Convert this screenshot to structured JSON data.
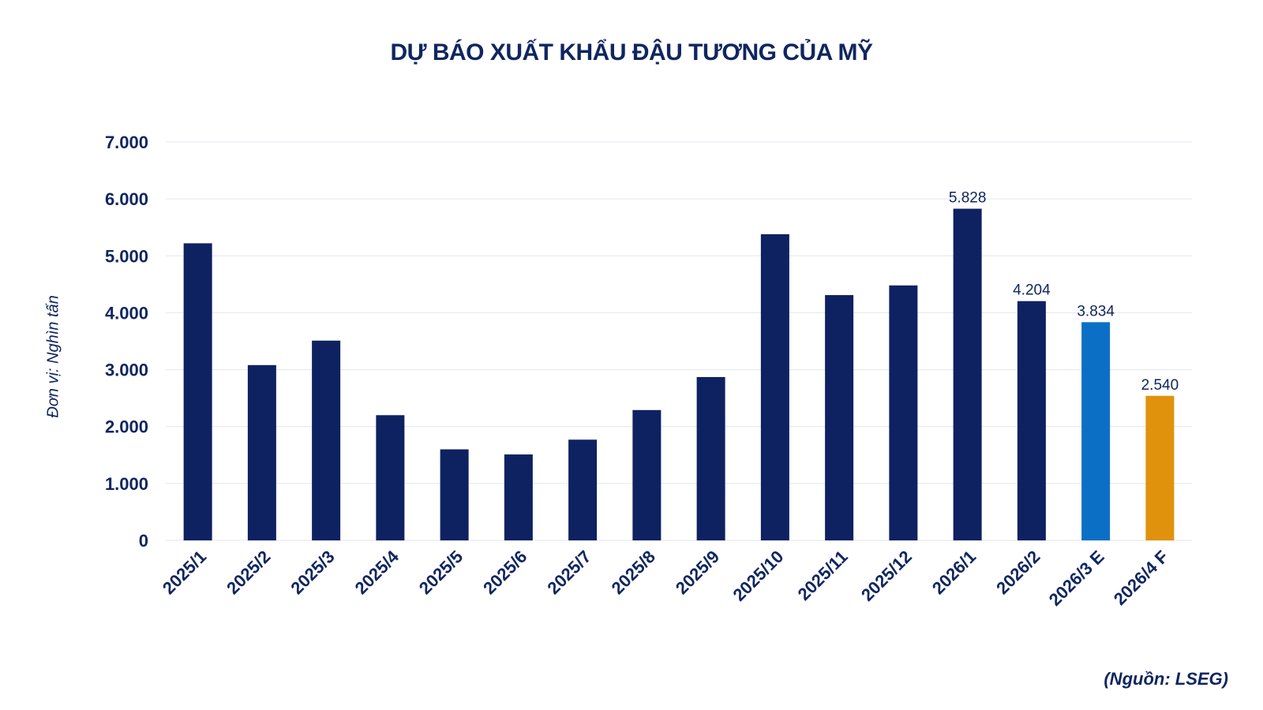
{
  "chart_data": {
    "type": "bar",
    "title": "DỰ BÁO XUẤT KHẨU ĐẬU TƯƠNG CỦA MỸ",
    "ylabel": "Đơn vị: Nghìn tấn",
    "source": "(Nguồn: LSEG)",
    "ylim": [
      0,
      7000
    ],
    "yticks": [
      "0",
      "1.000",
      "2.000",
      "3.000",
      "4.000",
      "5.000",
      "6.000",
      "7.000"
    ],
    "grid": true,
    "categories": [
      "2025/1",
      "2025/2",
      "2025/3",
      "2025/4",
      "2025/5",
      "2025/6",
      "2025/7",
      "2025/8",
      "2025/9",
      "2025/10",
      "2025/11",
      "2025/12",
      "2026/1",
      "2026/2",
      "2026/3 E",
      "2026/4 F"
    ],
    "values": [
      5220,
      3080,
      3510,
      2200,
      1600,
      1510,
      1770,
      2290,
      2870,
      5380,
      4310,
      4480,
      5828,
      4204,
      3834,
      2540
    ],
    "data_labels": [
      "",
      "",
      "",
      "",
      "",
      "",
      "",
      "",
      "",
      "",
      "",
      "",
      "5.828",
      "4.204",
      "3.834",
      "2.540"
    ],
    "colors": [
      "#0e2161",
      "#0e2161",
      "#0e2161",
      "#0e2161",
      "#0e2161",
      "#0e2161",
      "#0e2161",
      "#0e2161",
      "#0e2161",
      "#0e2161",
      "#0e2161",
      "#0e2161",
      "#0e2161",
      "#0e2161",
      "#0c6fc6",
      "#e0920c"
    ],
    "gridline_color": "#e3e6ec",
    "text_color": "#0f2660"
  }
}
